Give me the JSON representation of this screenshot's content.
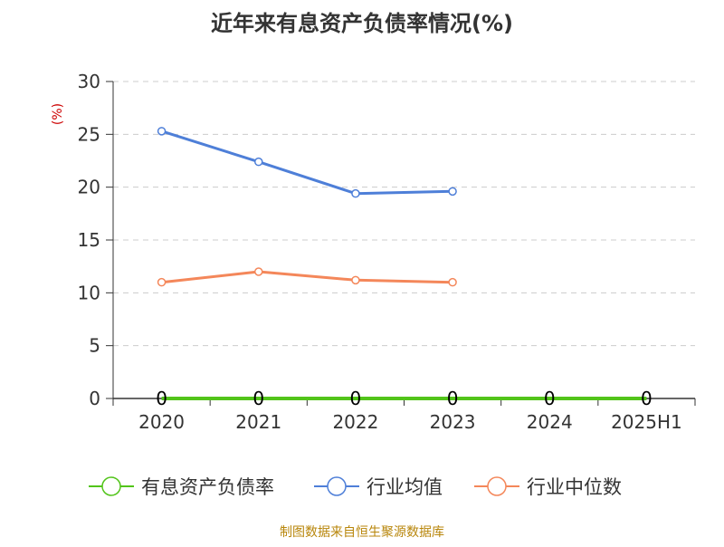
{
  "chart_data": {
    "type": "line",
    "title": "近年来有息资产负债率情况(%)",
    "ylabel": "(%)",
    "xlabel": "",
    "categories": [
      "2020",
      "2021",
      "2022",
      "2023",
      "2024",
      "2025H1"
    ],
    "ylim": [
      0,
      30
    ],
    "yticks": [
      0,
      5,
      10,
      15,
      20,
      25,
      30
    ],
    "grid": true,
    "legend_position": "bottom",
    "series": [
      {
        "name": "有息资产负债率",
        "color": "#52c41a",
        "values": [
          0,
          0,
          0,
          0,
          0,
          0
        ],
        "labels": [
          "0",
          "0",
          "0",
          "0",
          "0",
          "0"
        ]
      },
      {
        "name": "行业均值",
        "color": "#4e7fd8",
        "values": [
          25.3,
          22.4,
          19.4,
          19.6,
          null,
          null
        ]
      },
      {
        "name": "行业中位数",
        "color": "#f4875a",
        "values": [
          11.0,
          12.0,
          11.2,
          11.0,
          null,
          null
        ]
      }
    ],
    "source": "制图数据来自恒生聚源数据库"
  }
}
